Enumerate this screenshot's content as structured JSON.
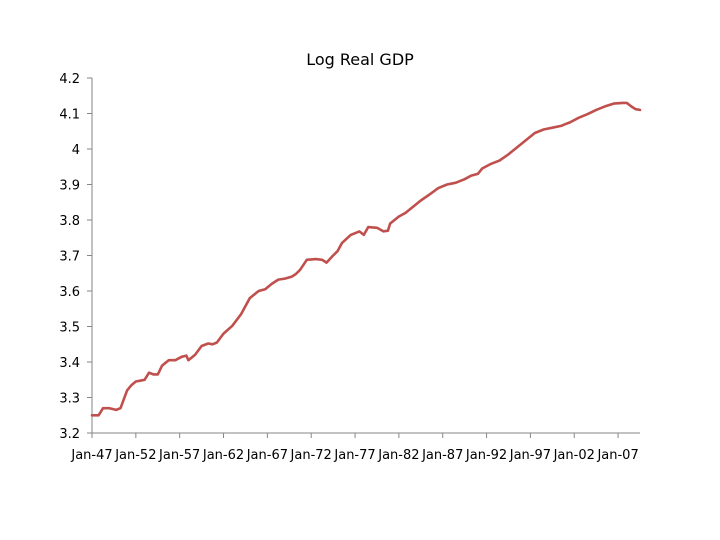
{
  "chart_data": {
    "type": "line",
    "title": "Log Real GDP",
    "xlabel": "",
    "ylabel": "",
    "ylim": [
      3.2,
      4.2
    ],
    "yticks": [
      3.2,
      3.3,
      3.4,
      3.5,
      3.6,
      3.7,
      3.8,
      3.9,
      4,
      4.1,
      4.2
    ],
    "ytick_labels": [
      "3.2",
      "3.3",
      "3.4",
      "3.5",
      "3.6",
      "3.7",
      "3.8",
      "3.9",
      "4",
      "4.1",
      "4.2"
    ],
    "x_range": [
      "1947-01",
      "2009-07"
    ],
    "xticks": [
      "1947-01",
      "1952-01",
      "1957-01",
      "1962-01",
      "1967-01",
      "1972-01",
      "1977-01",
      "1982-01",
      "1987-01",
      "1992-01",
      "1997-01",
      "2002-01",
      "2007-01"
    ],
    "xtick_labels": [
      "Jan-47",
      "Jan-52",
      "Jan-57",
      "Jan-62",
      "Jan-67",
      "Jan-72",
      "Jan-77",
      "Jan-82",
      "Jan-87",
      "Jan-92",
      "Jan-97",
      "Jan-02",
      "Jan-07"
    ],
    "grid": false,
    "legend": false,
    "line_color": "#c0504d",
    "series": [
      {
        "x": [
          "1947-01",
          "1947-10",
          "1948-04",
          "1949-01",
          "1949-10",
          "1950-04",
          "1951-01",
          "1951-07",
          "1952-01",
          "1953-01",
          "1953-07",
          "1954-01",
          "1954-07",
          "1955-01",
          "1955-10",
          "1956-07",
          "1957-04",
          "1957-10",
          "1958-01",
          "1958-10",
          "1959-07",
          "1960-04",
          "1960-10",
          "1961-04",
          "1962-01",
          "1963-01",
          "1964-01",
          "1965-01",
          "1966-01",
          "1966-10",
          "1967-07",
          "1968-04",
          "1969-01",
          "1969-10",
          "1970-04",
          "1970-10",
          "1971-07",
          "1972-07",
          "1973-04",
          "1973-10",
          "1974-07",
          "1975-01",
          "1975-07",
          "1976-07",
          "1977-07",
          "1978-01",
          "1978-07",
          "1979-07",
          "1980-04",
          "1980-10",
          "1981-01",
          "1981-07",
          "1982-01",
          "1982-10",
          "1983-07",
          "1984-07",
          "1985-07",
          "1986-07",
          "1987-07",
          "1988-07",
          "1989-07",
          "1990-04",
          "1991-01",
          "1991-07",
          "1992-07",
          "1993-07",
          "1994-07",
          "1995-07",
          "1996-07",
          "1997-07",
          "1998-07",
          "1999-07",
          "2000-07",
          "2001-01",
          "2001-07",
          "2002-07",
          "2003-07",
          "2004-07",
          "2005-07",
          "2006-07",
          "2007-07",
          "2008-01",
          "2008-07",
          "2009-01",
          "2009-07"
        ],
        "values": [
          3.25,
          3.25,
          3.27,
          3.27,
          3.265,
          3.27,
          3.32,
          3.335,
          3.345,
          3.35,
          3.37,
          3.365,
          3.365,
          3.39,
          3.405,
          3.405,
          3.415,
          3.418,
          3.405,
          3.42,
          3.445,
          3.452,
          3.45,
          3.455,
          3.48,
          3.502,
          3.535,
          3.58,
          3.6,
          3.605,
          3.62,
          3.632,
          3.635,
          3.64,
          3.648,
          3.66,
          3.688,
          3.69,
          3.688,
          3.68,
          3.7,
          3.712,
          3.735,
          3.758,
          3.768,
          3.758,
          3.78,
          3.778,
          3.768,
          3.77,
          3.79,
          3.8,
          3.81,
          3.82,
          3.835,
          3.855,
          3.872,
          3.89,
          3.9,
          3.905,
          3.915,
          3.925,
          3.93,
          3.945,
          3.958,
          3.968,
          3.985,
          4.005,
          4.025,
          4.045,
          4.055,
          4.06,
          4.065,
          4.07,
          4.075,
          4.088,
          4.098,
          4.11,
          4.12,
          4.128,
          4.13,
          4.13,
          4.12,
          4.112,
          4.11
        ]
      }
    ]
  }
}
